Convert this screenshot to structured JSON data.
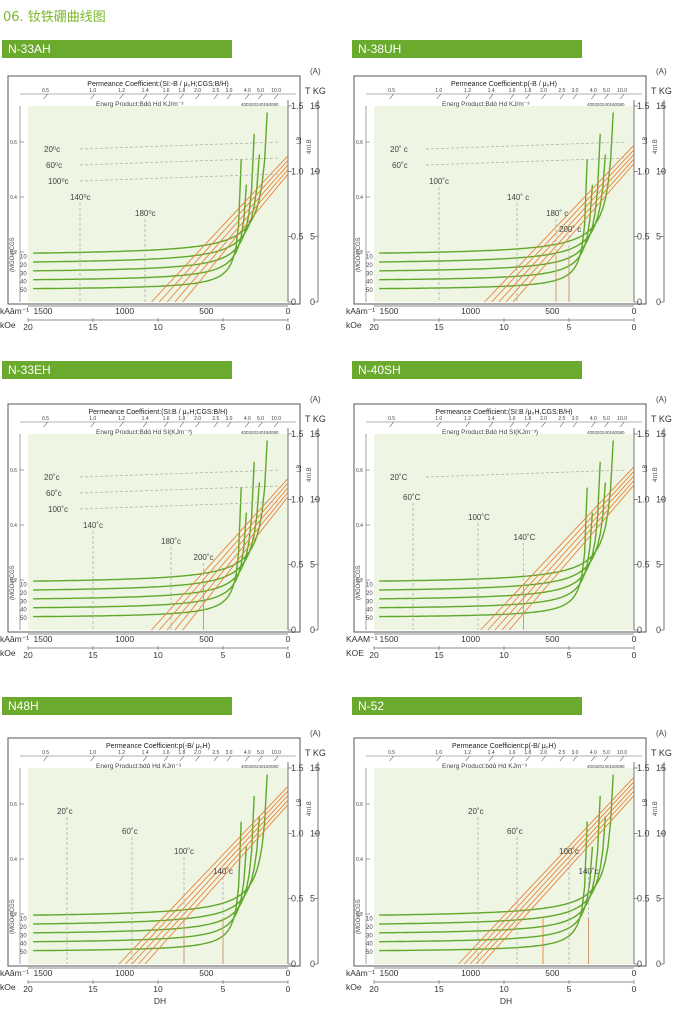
{
  "page": {
    "title": "06. 钕铁硼曲线图"
  },
  "labels": {
    "top_axis_unit": "(A)",
    "b_axis_units": "T  KG",
    "b_axis_alt": "4πI.B",
    "lb": "LB",
    "y_axis_title": "(MGOe)CGS",
    "perm_ticks": [
      "0.5",
      "1.0",
      "1.2",
      "1.4",
      "1.6",
      "1.8",
      "2.0",
      "2.5",
      "3.0",
      "4.0",
      "5.0",
      "10.0"
    ],
    "tesla_ticks": [
      "1.5",
      "1.0",
      "0.5",
      "0"
    ],
    "kg_ticks": [
      "15",
      "10",
      "5",
      "0"
    ],
    "left_side_ticks": [
      "0.6",
      "0.4",
      "0.2"
    ],
    "energy_ticks": [
      "50",
      "40",
      "30",
      "20",
      "10"
    ],
    "ka_ticks": [
      "1500",
      "1000",
      "500",
      "0"
    ],
    "koe_ticks": [
      "20",
      "15",
      "10",
      "5",
      "0"
    ],
    "small_numbers": "400320240160080"
  },
  "chart_data": [
    {
      "type": "line",
      "title": "N-33AH",
      "permeance_label": "Permeance Coefficient:(SI:-B / μ₀H;CGS:B/H)",
      "energy_label": "Energ Product:Bdά Hd   KJ/m⁻³",
      "ka_label": "kAâm⁻¹",
      "koe_label": "kOe",
      "xlabel": "",
      "x_axis": {
        "unit": "kOe",
        "lim": [
          20,
          0
        ]
      },
      "y_axis": {
        "unit": "T",
        "lim": [
          0,
          1.5
        ]
      },
      "energy_curves": [
        50,
        40,
        30,
        20,
        10
      ],
      "temperatures": [
        {
          "label": "20⁰c",
          "hcj": 0
        },
        {
          "label": "60⁰c",
          "hcj": 0
        },
        {
          "label": "100⁰c",
          "hcj": 0
        },
        {
          "label": "140⁰c",
          "hcj": 16
        },
        {
          "label": "180⁰c",
          "hcj": 11
        }
      ],
      "demag": {
        "br": 1.12,
        "hcb": 10.5,
        "spacing": 0.6,
        "count": 5,
        "knees": []
      }
    },
    {
      "type": "line",
      "title": "N-38UH",
      "permeance_label": "Permeance Coefficient:p(-B / μ₀H)",
      "energy_label": "Energ Product:Bdά Hd   KJ/m⁻³",
      "ka_label": "kAâm⁻¹",
      "koe_label": "kOe",
      "xlabel": "",
      "x_axis": {
        "unit": "kOe",
        "lim": [
          20,
          0
        ]
      },
      "y_axis": {
        "unit": "T",
        "lim": [
          0,
          1.5
        ]
      },
      "energy_curves": [
        50,
        40,
        30,
        20,
        10
      ],
      "temperatures": [
        {
          "label": "20˚ c",
          "hcj": 0
        },
        {
          "label": "60˚c",
          "hcj": 0
        },
        {
          "label": "100˚c",
          "hcj": 15
        },
        {
          "label": "140˚ c",
          "hcj": 9
        },
        {
          "label": "180˚ c",
          "hcj": 6
        },
        {
          "label": "200˚ c",
          "hcj": 5
        }
      ],
      "demag": {
        "br": 1.2,
        "hcb": 11.5,
        "spacing": 0.55,
        "count": 5,
        "knees": [
          6,
          5
        ]
      }
    },
    {
      "type": "line",
      "title": "N-33EH",
      "permeance_label": "Permeance Coefficient:(SI:B / μ₀H;CGS:B/H)",
      "energy_label": "Energ Product:Bdά Hd      SI(KJm⁻³)",
      "ka_label": "kAâm⁻¹",
      "koe_label": "kOe",
      "xlabel": "",
      "x_axis": {
        "unit": "kOe",
        "lim": [
          20,
          0
        ]
      },
      "y_axis": {
        "unit": "T",
        "lim": [
          0,
          1.5
        ]
      },
      "energy_curves": [
        50,
        40,
        30,
        20,
        10
      ],
      "temperatures": [
        {
          "label": "20˚c",
          "hcj": 0
        },
        {
          "label": "60˚c",
          "hcj": 0
        },
        {
          "label": "100˚c",
          "hcj": 0
        },
        {
          "label": "140˚c",
          "hcj": 15
        },
        {
          "label": "180˚c",
          "hcj": 9
        },
        {
          "label": "200˚c",
          "hcj": 6.5
        }
      ],
      "demag": {
        "br": 1.16,
        "hcb": 10.5,
        "spacing": 0.6,
        "count": 5,
        "knees": [
          6.5
        ]
      }
    },
    {
      "type": "line",
      "title": "N-40SH",
      "permeance_label": "Permeance Coefficient:(SI:B /μ₀H,CGS:B/H)",
      "energy_label": "Energ Product:Bdά Hd      SI(KJm⁻³)",
      "ka_label": "KAAM⁻¹",
      "koe_label": "KOE",
      "xlabel": "",
      "x_axis": {
        "unit": "kOe",
        "lim": [
          20,
          0
        ]
      },
      "y_axis": {
        "unit": "T",
        "lim": [
          0,
          1.5
        ]
      },
      "energy_curves": [
        50,
        40,
        30,
        20,
        10
      ],
      "temperatures": [
        {
          "label": "20˚C",
          "hcj": 0
        },
        {
          "label": "60˚C",
          "hcj": 17
        },
        {
          "label": "100˚C",
          "hcj": 12
        },
        {
          "label": "140˚C",
          "hcj": 8.5
        }
      ],
      "demag": {
        "br": 1.25,
        "hcb": 11.8,
        "spacing": 0.55,
        "count": 5,
        "knees": [
          8.5
        ]
      }
    },
    {
      "type": "line",
      "title": "N48H",
      "permeance_label": "Permeance Coefficient:p(-B/ μ₀H)",
      "energy_label": "Energ Product:bdά Hd    KJm⁻³",
      "ka_label": "kAâm⁻¹",
      "koe_label": "kOe",
      "xlabel": "DH",
      "x_axis": {
        "unit": "kOe",
        "lim": [
          20,
          0
        ]
      },
      "y_axis": {
        "unit": "T",
        "lim": [
          0,
          1.5
        ]
      },
      "energy_curves": [
        50,
        40,
        30,
        20,
        10
      ],
      "temperatures": [
        {
          "label": "20˚c",
          "hcj": 17
        },
        {
          "label": "60˚c",
          "hcj": 12
        },
        {
          "label": "100˚c",
          "hcj": 8
        },
        {
          "label": "140˚c",
          "hcj": 5
        }
      ],
      "demag": {
        "br": 1.36,
        "hcb": 13,
        "spacing": 0.5,
        "count": 5,
        "knees": [
          8,
          5
        ]
      }
    },
    {
      "type": "line",
      "title": "N-52",
      "permeance_label": "Permeance Coefficient:p(-B/ μ₀H)",
      "energy_label": "Energ Product:bdά Hd    KJm⁻³",
      "ka_label": "kAâm⁻¹",
      "koe_label": "kOe",
      "xlabel": "DH",
      "x_axis": {
        "unit": "kOe",
        "lim": [
          20,
          0
        ]
      },
      "y_axis": {
        "unit": "T",
        "lim": [
          0,
          1.5
        ]
      },
      "energy_curves": [
        50,
        40,
        30,
        20,
        10
      ],
      "temperatures": [
        {
          "label": "20˚c",
          "hcj": 12
        },
        {
          "label": "60˚c",
          "hcj": 9
        },
        {
          "label": "100˚c",
          "hcj": 5
        },
        {
          "label": "140˚c",
          "hcj": 3.5
        }
      ],
      "demag": {
        "br": 1.43,
        "hcb": 13.5,
        "spacing": 0.45,
        "count": 5,
        "knees": [
          7,
          3.5
        ]
      }
    }
  ]
}
